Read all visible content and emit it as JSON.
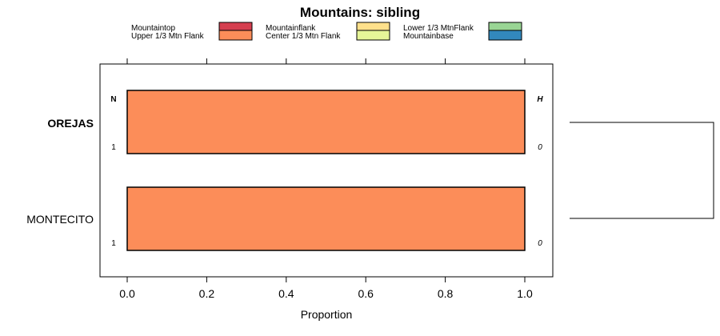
{
  "chart_data": {
    "type": "bar",
    "orientation": "horizontal",
    "stacked": true,
    "title": "Mountains: sibling",
    "xlabel": "Proportion",
    "ylabel": "",
    "xlim": [
      0,
      1
    ],
    "x_ticks": [
      "0.0",
      "0.2",
      "0.4",
      "0.6",
      "0.8",
      "1.0"
    ],
    "categories": [
      "OREJAS",
      "MONTECITO"
    ],
    "category_bold": [
      true,
      false
    ],
    "series": [
      {
        "name": "Mountaintop",
        "color": "#d53e4f",
        "values": [
          0,
          0
        ]
      },
      {
        "name": "Upper 1/3 Mtn Flank",
        "color": "#fc8d59",
        "values": [
          1,
          1
        ]
      },
      {
        "name": "Mountainflank",
        "color": "#fee08b",
        "values": [
          0,
          0
        ]
      },
      {
        "name": "Center 1/3 Mtn Flank",
        "color": "#e6f598",
        "values": [
          0,
          0
        ]
      },
      {
        "name": "Lower 1/3 MtnFlank",
        "color": "#99d594",
        "values": [
          0,
          0
        ]
      },
      {
        "name": "Mountainbase",
        "color": "#3288bd",
        "values": [
          0,
          0
        ]
      }
    ],
    "n_header": "N",
    "h_header": "H",
    "n_values": [
      "1",
      "1"
    ],
    "h_values": [
      "0",
      "0"
    ],
    "grid": false,
    "legend_position": "top",
    "dendrogram": true
  }
}
